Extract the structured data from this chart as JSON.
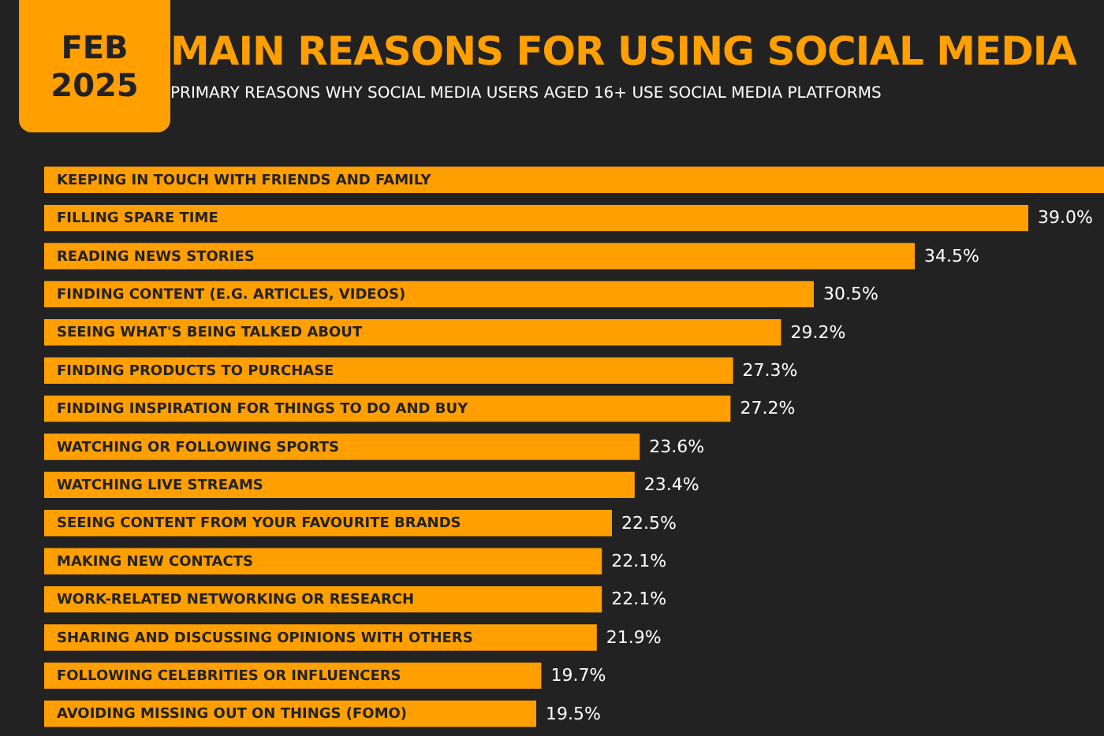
{
  "chart_data": {
    "type": "bar",
    "orientation": "horizontal",
    "title": "MAIN REASONS FOR USING SOCIAL MEDIA",
    "subtitle": "PRIMARY REASONS WHY SOCIAL MEDIA USERS AGED 16+ USE SOCIAL MEDIA PLATFORMS",
    "annotations": [
      "FEB 2025"
    ],
    "categories": [
      "KEEPING IN TOUCH WITH FRIENDS AND FAMILY",
      "FILLING SPARE TIME",
      "READING NEWS STORIES",
      "FINDING CONTENT (E.G. ARTICLES, VIDEOS)",
      "SEEING WHAT'S BEING TALKED ABOUT",
      "FINDING PRODUCTS TO PURCHASE",
      "FINDING INSPIRATION FOR THINGS TO DO AND BUY",
      "WATCHING OR FOLLOWING SPORTS",
      "WATCHING LIVE STREAMS",
      "SEEING CONTENT FROM YOUR FAVOURITE BRANDS",
      "MAKING NEW CONTACTS",
      "WORK-RELATED NETWORKING OR RESEARCH",
      "SHARING AND DISCUSSING OPINIONS WITH OTHERS",
      "FOLLOWING CELEBRITIES OR INFLUENCERS",
      "AVOIDING MISSING OUT ON THINGS (FOMO)"
    ],
    "values": [
      42,
      39.0,
      34.5,
      30.5,
      29.2,
      27.3,
      27.2,
      23.6,
      23.4,
      22.5,
      22.1,
      22.1,
      21.9,
      19.7,
      19.5
    ],
    "value_labels": [
      null,
      "39.0%",
      "34.5%",
      "30.5%",
      "29.2%",
      "27.3%",
      "27.2%",
      "23.6%",
      "23.4%",
      "22.5%",
      "22.1%",
      "22.1%",
      "21.9%",
      "19.7%",
      "19.5%"
    ],
    "color": "#ff9f00",
    "xlim": [
      0,
      42
    ],
    "legend": false
  }
}
